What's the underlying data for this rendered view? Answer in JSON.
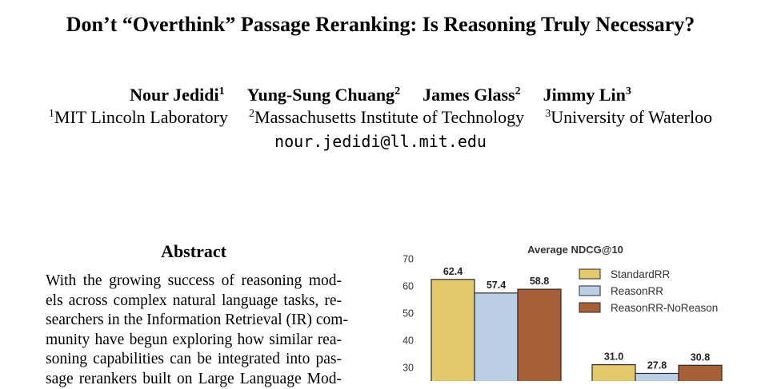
{
  "paper": {
    "title": "Don’t “Overthink” Passage Reranking: Is Reasoning Truly Necessary?",
    "authors": [
      {
        "name": "Nour Jedidi",
        "sup": "1"
      },
      {
        "name": "Yung-Sung Chuang",
        "sup": "2"
      },
      {
        "name": "James Glass",
        "sup": "2"
      },
      {
        "name": "Jimmy Lin",
        "sup": "3"
      }
    ],
    "affiliations": [
      {
        "sup": "1",
        "name": "MIT Lincoln Laboratory"
      },
      {
        "sup": "2",
        "name": "Massachusetts Institute of Technology"
      },
      {
        "sup": "3",
        "name": "University of Waterloo"
      }
    ],
    "email": "nour.jedidi@ll.mit.edu",
    "abstract_heading": "Abstract",
    "abstract_lines": [
      "With the growing success of reasoning mod-",
      "els across complex natural language tasks, re-",
      "searchers in the Information Retrieval (IR) com-",
      "munity have begun exploring how similar rea-",
      "soning capabilities can be integrated into pas-",
      "sage rerankers built on Large Language Mod-"
    ]
  },
  "chart_data": {
    "type": "bar",
    "title": "Average NDCG@10",
    "series": [
      {
        "name": "StandardRR",
        "color": "#E3C96B",
        "values": [
          62.4,
          31.0
        ]
      },
      {
        "name": "ReasonRR",
        "color": "#BBD0E6",
        "values": [
          57.4,
          27.8
        ]
      },
      {
        "name": "ReasonRR-NoReason",
        "color": "#A85F38",
        "values": [
          58.8,
          30.8
        ]
      }
    ],
    "value_labels": [
      [
        "62.4",
        "31.0"
      ],
      [
        "57.4",
        "27.8"
      ],
      [
        "58.8",
        "30.8"
      ]
    ],
    "yticks": [
      "70",
      "60",
      "50",
      "40",
      "30"
    ],
    "ytick_values": [
      70,
      60,
      50,
      40,
      30
    ],
    "legend_position": "top-right",
    "grid": false
  }
}
